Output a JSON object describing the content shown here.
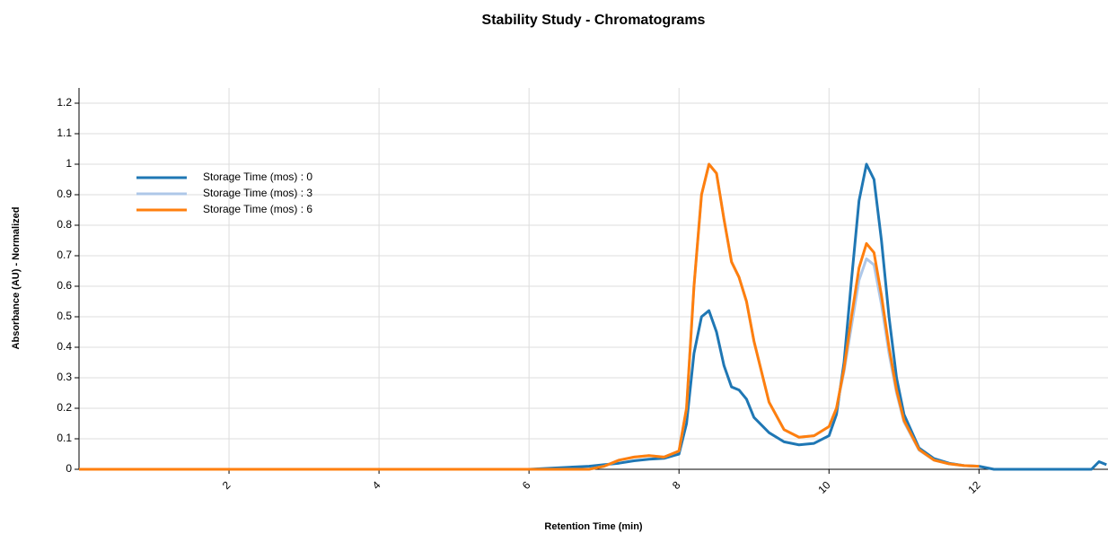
{
  "chart_data": {
    "type": "line",
    "title": "Stability Study - Chromatograms",
    "x_label": "Retention Time (min)",
    "y_label": "Absorbance (AU) - Normalized",
    "x": [
      0,
      1,
      2,
      3,
      4,
      5,
      6,
      6.8,
      7.0,
      7.2,
      7.4,
      7.6,
      7.8,
      8.0,
      8.1,
      8.2,
      8.3,
      8.4,
      8.5,
      8.6,
      8.7,
      8.8,
      8.9,
      9.0,
      9.2,
      9.4,
      9.6,
      9.8,
      10.0,
      10.1,
      10.2,
      10.3,
      10.4,
      10.5,
      10.6,
      10.7,
      10.8,
      10.9,
      11.0,
      11.2,
      11.4,
      11.6,
      11.8,
      12.0,
      12.2,
      12.5,
      13.0,
      13.5,
      13.6,
      13.7
    ],
    "series": [
      {
        "name": "Storage Time (mos) : 0",
        "color": "#1f77b4",
        "values": [
          0,
          0,
          0,
          0,
          0,
          0,
          0,
          0.01,
          0.015,
          0.02,
          0.028,
          0.033,
          0.036,
          0.05,
          0.15,
          0.38,
          0.5,
          0.52,
          0.45,
          0.34,
          0.27,
          0.26,
          0.23,
          0.17,
          0.12,
          0.09,
          0.08,
          0.085,
          0.11,
          0.18,
          0.35,
          0.62,
          0.88,
          1.0,
          0.95,
          0.75,
          0.5,
          0.3,
          0.18,
          0.07,
          0.035,
          0.02,
          0.012,
          0.01,
          0,
          0,
          0,
          0,
          0.025,
          0.015
        ]
      },
      {
        "name": "Storage Time (mos) : 3",
        "color": "#aec7e8",
        "values": [
          0,
          0,
          0,
          0,
          0,
          0,
          0,
          0,
          0.01,
          0.03,
          0.04,
          0.045,
          0.04,
          0.06,
          0.2,
          0.6,
          0.9,
          1.0,
          0.97,
          0.82,
          0.68,
          0.63,
          0.55,
          0.42,
          0.22,
          0.13,
          0.105,
          0.11,
          0.14,
          0.2,
          0.32,
          0.47,
          0.62,
          0.69,
          0.67,
          0.54,
          0.38,
          0.25,
          0.155,
          0.063,
          0.03,
          0.018,
          0.012,
          0.01,
          null,
          null,
          null,
          null,
          null,
          null
        ]
      },
      {
        "name": "Storage Time (mos) : 6",
        "color": "#ff7f0e",
        "values": [
          0,
          0,
          0,
          0,
          0,
          0,
          0,
          0,
          0.01,
          0.03,
          0.04,
          0.045,
          0.04,
          0.06,
          0.2,
          0.6,
          0.9,
          1.0,
          0.97,
          0.82,
          0.68,
          0.63,
          0.55,
          0.42,
          0.22,
          0.13,
          0.105,
          0.11,
          0.14,
          0.2,
          0.33,
          0.5,
          0.66,
          0.74,
          0.71,
          0.57,
          0.4,
          0.26,
          0.16,
          0.065,
          0.03,
          0.018,
          0.012,
          0.01,
          null,
          null,
          null,
          null,
          null,
          null
        ]
      }
    ],
    "xlim": [
      0,
      13.72
    ],
    "ylim": [
      0,
      1.25
    ],
    "xticks": [
      2,
      4,
      6,
      8,
      10,
      12
    ],
    "yticks": [
      0,
      0.1,
      0.2,
      0.3,
      0.4,
      0.5,
      0.6,
      0.7,
      0.8,
      0.9,
      1,
      1.1,
      1.2
    ],
    "grid": true,
    "legend": "upper-left"
  }
}
